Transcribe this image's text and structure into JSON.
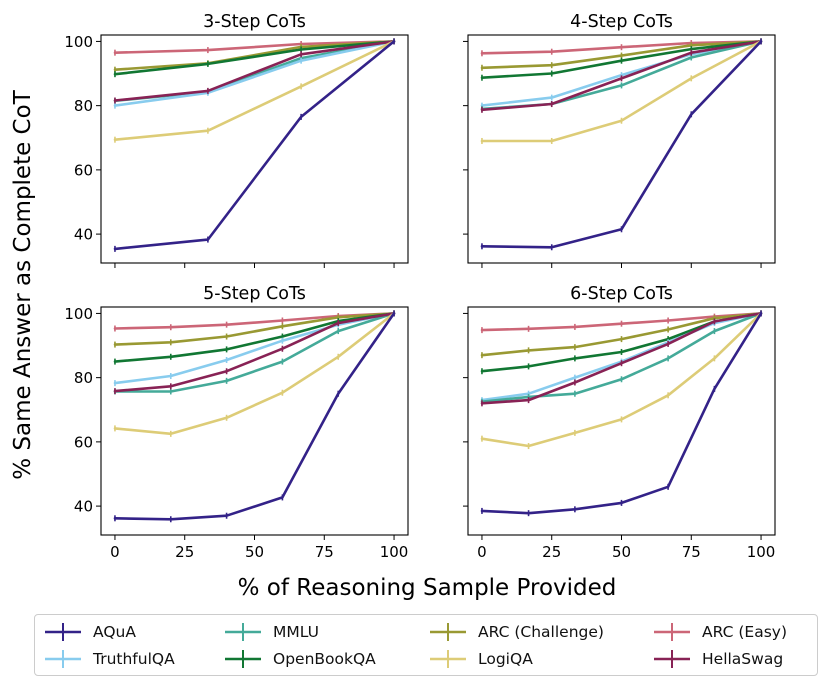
{
  "figure": {
    "ylabel": "% Same Answer as Complete CoT",
    "xlabel": "% of Reasoning Sample Provided"
  },
  "series_styles": [
    {
      "name": "AQuA",
      "color": "#332288"
    },
    {
      "name": "TruthfulQA",
      "color": "#88CCEE"
    },
    {
      "name": "MMLU",
      "color": "#44AA99"
    },
    {
      "name": "OpenBookQA",
      "color": "#117733"
    },
    {
      "name": "ARC (Challenge)",
      "color": "#999933"
    },
    {
      "name": "LogiQA",
      "color": "#DDCC77"
    },
    {
      "name": "ARC (Easy)",
      "color": "#CC6677"
    },
    {
      "name": "HellaSwag",
      "color": "#882255"
    }
  ],
  "legend": {
    "entries": [
      "AQuA",
      "MMLU",
      "ARC (Challenge)",
      "ARC (Easy)",
      "TruthfulQA",
      "OpenBookQA",
      "LogiQA",
      "HellaSwag"
    ]
  },
  "chart_data": [
    {
      "type": "line",
      "title": "3-Step CoTs",
      "xlim": [
        -5,
        105
      ],
      "ylim": [
        31,
        102
      ],
      "xticks": [
        0,
        25,
        50,
        75,
        100
      ],
      "yticks": [
        40,
        60,
        80,
        100
      ],
      "show_xticklabels": false,
      "show_yticklabels": true,
      "x": [
        0,
        33.3,
        66.7,
        100
      ],
      "series": [
        {
          "name": "ARC (Easy)",
          "values": [
            96.5,
            97.3,
            99.2,
            100
          ]
        },
        {
          "name": "ARC (Challenge)",
          "values": [
            91.2,
            93.2,
            98.3,
            100
          ]
        },
        {
          "name": "OpenBookQA",
          "values": [
            89.8,
            93.0,
            97.5,
            100
          ]
        },
        {
          "name": "MMLU",
          "values": [
            81.5,
            84.3,
            94.8,
            100
          ]
        },
        {
          "name": "TruthfulQA",
          "values": [
            80.0,
            84.0,
            94.0,
            100
          ]
        },
        {
          "name": "HellaSwag",
          "values": [
            81.6,
            84.6,
            96.0,
            100
          ]
        },
        {
          "name": "LogiQA",
          "values": [
            69.4,
            72.2,
            86.0,
            100
          ]
        },
        {
          "name": "AQuA",
          "values": [
            35.4,
            38.3,
            76.5,
            100
          ]
        }
      ]
    },
    {
      "type": "line",
      "title": "4-Step CoTs",
      "xlim": [
        -5,
        105
      ],
      "ylim": [
        31,
        102
      ],
      "xticks": [
        0,
        25,
        50,
        75,
        100
      ],
      "yticks": [
        40,
        60,
        80,
        100
      ],
      "show_xticklabels": false,
      "show_yticklabels": false,
      "x": [
        0,
        25,
        50,
        75,
        100
      ],
      "series": [
        {
          "name": "ARC (Easy)",
          "values": [
            96.3,
            96.8,
            98.2,
            99.5,
            100
          ]
        },
        {
          "name": "ARC (Challenge)",
          "values": [
            91.8,
            92.6,
            95.6,
            98.8,
            100
          ]
        },
        {
          "name": "OpenBookQA",
          "values": [
            88.7,
            90.0,
            94.0,
            97.6,
            100
          ]
        },
        {
          "name": "TruthfulQA",
          "values": [
            80.0,
            82.5,
            89.5,
            96.0,
            100
          ]
        },
        {
          "name": "MMLU",
          "values": [
            79.0,
            80.5,
            86.3,
            95.0,
            100
          ]
        },
        {
          "name": "HellaSwag",
          "values": [
            78.7,
            80.5,
            88.5,
            96.5,
            100
          ]
        },
        {
          "name": "LogiQA",
          "values": [
            69.0,
            69.0,
            75.3,
            88.5,
            100
          ]
        },
        {
          "name": "AQuA",
          "values": [
            36.2,
            35.9,
            41.5,
            77.3,
            100
          ]
        }
      ]
    },
    {
      "type": "line",
      "title": "5-Step CoTs",
      "xlim": [
        -5,
        105
      ],
      "ylim": [
        31,
        102
      ],
      "xticks": [
        0,
        25,
        50,
        75,
        100
      ],
      "yticks": [
        40,
        60,
        80,
        100
      ],
      "show_xticklabels": true,
      "show_yticklabels": true,
      "x": [
        0,
        20,
        40,
        60,
        80,
        100
      ],
      "series": [
        {
          "name": "ARC (Easy)",
          "values": [
            95.3,
            95.7,
            96.5,
            97.8,
            99.2,
            100
          ]
        },
        {
          "name": "ARC (Challenge)",
          "values": [
            90.3,
            91.0,
            92.8,
            96.0,
            98.8,
            100
          ]
        },
        {
          "name": "OpenBookQA",
          "values": [
            85.0,
            86.5,
            88.8,
            92.8,
            97.6,
            100
          ]
        },
        {
          "name": "TruthfulQA",
          "values": [
            78.3,
            80.5,
            85.5,
            91.5,
            96.5,
            100
          ]
        },
        {
          "name": "MMLU",
          "values": [
            75.7,
            75.7,
            79.0,
            85.0,
            94.5,
            100
          ]
        },
        {
          "name": "HellaSwag",
          "values": [
            75.8,
            77.3,
            82.0,
            89.0,
            97.0,
            100
          ]
        },
        {
          "name": "LogiQA",
          "values": [
            64.2,
            62.5,
            67.5,
            75.3,
            86.5,
            100
          ]
        },
        {
          "name": "AQuA",
          "values": [
            36.2,
            35.9,
            37.0,
            42.7,
            75.0,
            100
          ]
        }
      ]
    },
    {
      "type": "line",
      "title": "6-Step CoTs",
      "xlim": [
        -5,
        105
      ],
      "ylim": [
        31,
        102
      ],
      "xticks": [
        0,
        25,
        50,
        75,
        100
      ],
      "yticks": [
        40,
        60,
        80,
        100
      ],
      "show_xticklabels": true,
      "show_yticklabels": false,
      "x": [
        0,
        16.7,
        33.3,
        50,
        66.7,
        83.3,
        100
      ],
      "series": [
        {
          "name": "ARC (Easy)",
          "values": [
            94.8,
            95.2,
            95.8,
            96.8,
            97.8,
            99.0,
            100
          ]
        },
        {
          "name": "ARC (Challenge)",
          "values": [
            87.0,
            88.5,
            89.5,
            92.0,
            95.0,
            98.5,
            100
          ]
        },
        {
          "name": "OpenBookQA",
          "values": [
            82.0,
            83.5,
            86.0,
            88.0,
            92.0,
            97.5,
            100
          ]
        },
        {
          "name": "TruthfulQA",
          "values": [
            73.0,
            75.0,
            80.0,
            85.0,
            91.0,
            97.0,
            100
          ]
        },
        {
          "name": "MMLU",
          "values": [
            72.5,
            74.0,
            75.0,
            79.5,
            86.0,
            94.5,
            100
          ]
        },
        {
          "name": "HellaSwag",
          "values": [
            72.0,
            73.0,
            78.5,
            84.5,
            90.5,
            97.5,
            100
          ]
        },
        {
          "name": "LogiQA",
          "values": [
            61.0,
            58.7,
            62.8,
            67.0,
            74.5,
            86.0,
            100
          ]
        },
        {
          "name": "AQuA",
          "values": [
            38.5,
            37.8,
            39.0,
            41.0,
            46.0,
            76.5,
            100
          ]
        }
      ]
    }
  ]
}
